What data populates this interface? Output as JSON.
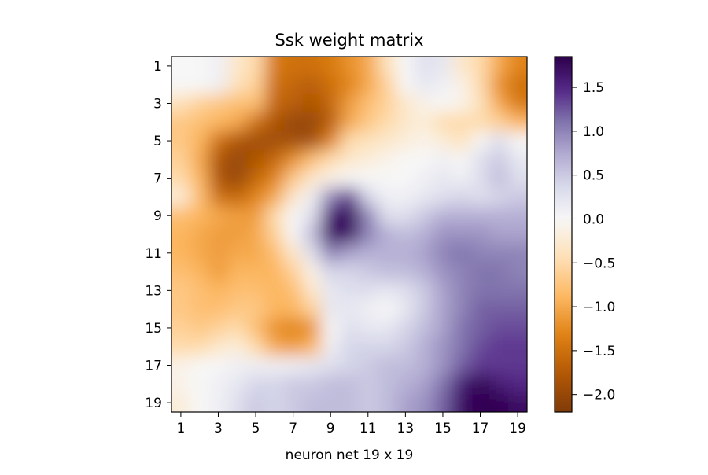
{
  "chart_data": {
    "type": "heatmap",
    "title": "Ssk weight matrix",
    "xlabel": "neuron net 19 x 19",
    "ylabel": "",
    "x_ticks": [
      "1",
      "3",
      "5",
      "7",
      "9",
      "11",
      "13",
      "15",
      "17",
      "19"
    ],
    "y_ticks": [
      "1",
      "3",
      "5",
      "7",
      "9",
      "11",
      "13",
      "15",
      "17",
      "19"
    ],
    "colorbar": {
      "min": -2.2,
      "max": 1.85,
      "ticks": [
        -2.0,
        -1.5,
        -1.0,
        -0.5,
        0.0,
        0.5,
        1.0,
        1.5
      ],
      "tick_labels": [
        "−2.0",
        "−1.5",
        "−1.0",
        "−0.5",
        "0.0",
        "0.5",
        "1.0",
        "1.5"
      ]
    },
    "colormap": "PuOr",
    "interpolation": "smooth",
    "rows": 19,
    "cols": 19,
    "values": [
      [
        0.0,
        0.0,
        0.1,
        -0.3,
        -0.5,
        -1.4,
        -1.5,
        -1.5,
        -1.4,
        -1.2,
        -1.0,
        -0.4,
        0.0,
        0.3,
        0.2,
        -0.3,
        -0.5,
        -1.0,
        -1.3
      ],
      [
        0.0,
        0.0,
        0.1,
        -0.4,
        -0.6,
        -1.5,
        -1.6,
        -1.7,
        -1.5,
        -1.3,
        -1.0,
        -0.6,
        0.0,
        0.2,
        0.1,
        -0.1,
        -0.5,
        -1.2,
        -1.5
      ],
      [
        -0.4,
        -0.6,
        -0.7,
        -0.8,
        -0.8,
        -1.6,
        -1.7,
        -1.8,
        -1.6,
        -1.1,
        -0.8,
        -0.6,
        -0.3,
        -0.1,
        0.0,
        -0.1,
        -0.4,
        -1.0,
        -1.4
      ],
      [
        -0.7,
        -0.8,
        -0.9,
        -1.0,
        -1.5,
        -1.8,
        -2.0,
        -2.0,
        -1.7,
        -1.0,
        -0.7,
        -0.5,
        -0.3,
        -0.2,
        -0.5,
        -0.5,
        -0.5,
        -0.6,
        -0.9
      ],
      [
        -0.7,
        -0.9,
        -1.5,
        -1.8,
        -1.9,
        -1.9,
        -1.9,
        -1.9,
        -1.3,
        -0.5,
        -0.4,
        -0.3,
        -0.2,
        -0.1,
        -0.2,
        -0.4,
        0.0,
        0.3,
        0.0
      ],
      [
        -0.6,
        -1.0,
        -1.8,
        -2.0,
        -1.8,
        -1.6,
        -1.2,
        -0.8,
        -0.5,
        -0.3,
        -0.2,
        -0.1,
        0.0,
        0.0,
        0.1,
        0.0,
        0.3,
        0.5,
        0.2
      ],
      [
        -0.5,
        -0.9,
        -1.8,
        -2.0,
        -1.6,
        -1.3,
        -0.7,
        -0.3,
        -0.1,
        0.0,
        0.0,
        0.0,
        0.0,
        0.1,
        0.2,
        0.1,
        0.3,
        0.6,
        0.3
      ],
      [
        -0.2,
        -0.8,
        -1.5,
        -1.6,
        -1.3,
        -1.0,
        -0.3,
        0.1,
        1.0,
        1.4,
        0.4,
        0.1,
        0.1,
        0.2,
        0.3,
        0.4,
        0.3,
        0.4,
        0.5
      ],
      [
        -0.8,
        -0.9,
        -1.0,
        -1.1,
        -1.1,
        -0.5,
        0.0,
        0.3,
        1.6,
        1.8,
        1.0,
        0.3,
        0.3,
        0.5,
        0.7,
        0.7,
        0.7,
        0.7,
        0.7
      ],
      [
        -0.9,
        -1.0,
        -1.1,
        -1.1,
        -1.0,
        -0.6,
        0.0,
        0.6,
        1.7,
        1.7,
        1.0,
        0.7,
        0.6,
        0.7,
        0.9,
        0.9,
        0.9,
        0.8,
        0.8
      ],
      [
        -0.9,
        -1.0,
        -1.1,
        -1.0,
        -1.0,
        -0.8,
        -0.3,
        0.3,
        1.0,
        0.8,
        0.7,
        0.7,
        0.7,
        0.8,
        1.0,
        1.1,
        1.0,
        1.0,
        1.0
      ],
      [
        -0.8,
        -0.9,
        -1.1,
        -0.9,
        -0.9,
        -0.9,
        -0.6,
        -0.1,
        0.4,
        0.4,
        0.5,
        0.6,
        0.6,
        0.7,
        0.9,
        1.0,
        1.1,
        1.1,
        1.0
      ],
      [
        -0.7,
        -0.8,
        -0.9,
        -0.8,
        -0.8,
        -0.9,
        -0.8,
        -0.3,
        0.2,
        0.3,
        0.3,
        0.2,
        0.3,
        0.5,
        0.8,
        1.0,
        1.1,
        1.1,
        1.1
      ],
      [
        -0.7,
        -0.8,
        -0.8,
        -0.7,
        -0.7,
        -0.9,
        -0.9,
        -0.6,
        0.2,
        0.2,
        0.1,
        0.0,
        0.2,
        0.5,
        0.8,
        1.0,
        1.2,
        1.2,
        1.2
      ],
      [
        -0.6,
        -0.7,
        -0.6,
        -0.5,
        -0.8,
        -1.2,
        -1.3,
        -1.2,
        0.0,
        0.3,
        0.2,
        0.2,
        0.4,
        0.6,
        0.8,
        1.1,
        1.2,
        1.3,
        1.3
      ],
      [
        -0.5,
        -0.5,
        -0.3,
        -0.2,
        -0.5,
        -1.0,
        -1.1,
        -0.9,
        0.1,
        0.4,
        0.4,
        0.4,
        0.5,
        0.7,
        0.9,
        1.1,
        1.3,
        1.4,
        1.4
      ],
      [
        -0.1,
        0.0,
        0.0,
        0.1,
        0.1,
        0.1,
        0.1,
        0.2,
        0.3,
        0.4,
        0.5,
        0.6,
        0.6,
        0.7,
        0.9,
        1.2,
        1.4,
        1.4,
        1.4
      ],
      [
        -0.1,
        0.0,
        0.1,
        0.2,
        0.4,
        0.4,
        0.5,
        0.5,
        0.6,
        0.6,
        0.5,
        0.6,
        0.7,
        0.8,
        1.1,
        1.6,
        1.8,
        1.6,
        1.5
      ],
      [
        -0.2,
        0.0,
        0.1,
        0.3,
        0.5,
        0.4,
        0.5,
        0.6,
        0.6,
        0.6,
        0.5,
        0.6,
        0.8,
        0.9,
        1.2,
        1.7,
        1.8,
        1.8,
        1.7
      ]
    ]
  }
}
